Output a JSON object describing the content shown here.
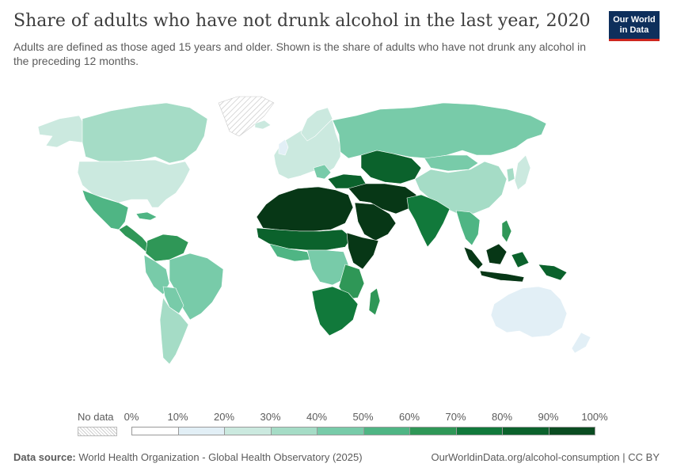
{
  "header": {
    "title": "Share of adults who have not drunk alcohol in the last year, 2020",
    "subtitle": "Adults are defined as those aged 15 years and older. Shown is the share of adults who have not drunk any alcohol in the preceding 12 months.",
    "logo_line1": "Our World",
    "logo_line2": "in Data"
  },
  "legend": {
    "no_data_label": "No data",
    "ticks": [
      "0%",
      "10%",
      "20%",
      "30%",
      "40%",
      "50%",
      "60%",
      "70%",
      "80%",
      "90%",
      "100%"
    ],
    "colors": [
      "#ffffff",
      "#e2eff6",
      "#cbe9df",
      "#a5dcc6",
      "#78cba9",
      "#4fb584",
      "#2f9757",
      "#11793b",
      "#0b622c",
      "#0a4c21",
      "#073716"
    ]
  },
  "regions": [
    {
      "name": "North America (Canada/US)",
      "share_bin": "20-40%"
    },
    {
      "name": "Latin America",
      "share_bin": "40-60%"
    },
    {
      "name": "Europe",
      "share_bin": "10-30%"
    },
    {
      "name": "Russia",
      "share_bin": "40-50%"
    },
    {
      "name": "North Africa & Middle East",
      "share_bin": "90-100%"
    },
    {
      "name": "Sub-Saharan Africa",
      "share_bin": "50-90%"
    },
    {
      "name": "South Asia",
      "share_bin": "70-90%"
    },
    {
      "name": "China",
      "share_bin": "30-40%"
    },
    {
      "name": "Indonesia",
      "share_bin": "80-100%"
    },
    {
      "name": "Australia",
      "share_bin": "10-20%"
    },
    {
      "name": "Greenland",
      "share_bin": "no data"
    }
  ],
  "footer": {
    "source_label": "Data source:",
    "source_text": "World Health Organization - Global Health Observatory (2025)",
    "right_text": "OurWorldinData.org/alcohol-consumption | CC BY"
  }
}
